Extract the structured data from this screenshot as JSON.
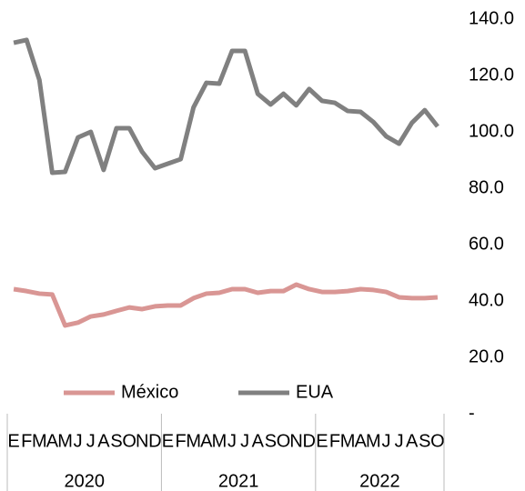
{
  "chart_data": {
    "type": "line",
    "categories": [
      "E",
      "F",
      "M",
      "A",
      "M",
      "J",
      "J",
      "A",
      "S",
      "O",
      "N",
      "D",
      "E",
      "F",
      "M",
      "A",
      "M",
      "J",
      "J",
      "A",
      "S",
      "O",
      "N",
      "D",
      "E",
      "F",
      "M",
      "A",
      "M",
      "J",
      "J",
      "A",
      "S",
      "O"
    ],
    "groups": [
      {
        "label": "2020",
        "size": 12
      },
      {
        "label": "2021",
        "size": 12
      },
      {
        "label": "2022",
        "size": 10
      }
    ],
    "series": [
      {
        "name": "México",
        "color": "#d99694",
        "values": [
          44.2,
          43.5,
          42.6,
          42.3,
          31.3,
          32.3,
          34.5,
          35.2,
          36.5,
          37.7,
          37.1,
          38.1,
          38.4,
          38.4,
          41,
          42.6,
          42.9,
          44.2,
          44.2,
          42.9,
          43.5,
          43.5,
          45.8,
          44.2,
          43.2,
          43.2,
          43.5,
          44.2,
          43.9,
          43.2,
          41.3,
          41,
          41,
          41.3
        ]
      },
      {
        "name": "EUA",
        "color": "#808080",
        "values": [
          131.6,
          132.6,
          118.4,
          85.5,
          85.8,
          98,
          100,
          86.5,
          101.3,
          101.3,
          92.9,
          87.1,
          88.7,
          90.3,
          108.7,
          117.4,
          117.1,
          128.7,
          128.7,
          113.5,
          109.7,
          113.5,
          109.4,
          115.2,
          111,
          110.3,
          107.4,
          107.1,
          103.5,
          98.4,
          95.8,
          103.2,
          107.7,
          101.9
        ]
      }
    ],
    "ylim": [
      0,
      140
    ],
    "yticks": [
      {
        "value": 0,
        "label": "-"
      },
      {
        "value": 20,
        "label": "20.0"
      },
      {
        "value": 40,
        "label": "40.0"
      },
      {
        "value": 60,
        "label": "60.0"
      },
      {
        "value": 80,
        "label": "80.0"
      },
      {
        "value": 100,
        "label": "100.0"
      },
      {
        "value": 120,
        "label": "120.0"
      },
      {
        "value": 140,
        "label": "140.0"
      }
    ],
    "legend": "bottom"
  }
}
